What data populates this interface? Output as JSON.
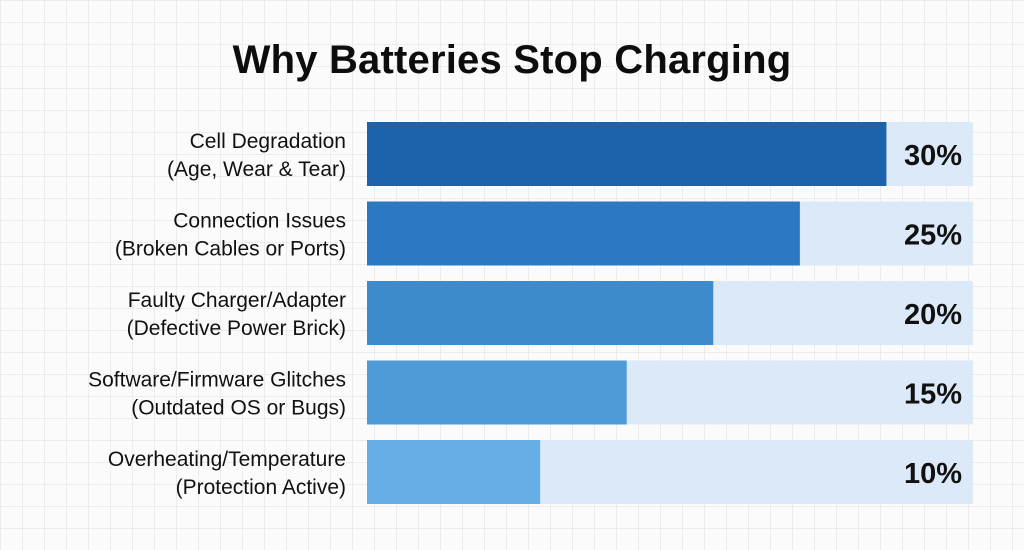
{
  "chart_data": {
    "type": "bar",
    "orientation": "horizontal",
    "title": "Why Batteries Stop Charging",
    "categories": [
      {
        "name": "Cell Degradation",
        "detail": "(Age, Wear & Tear)"
      },
      {
        "name": "Connection Issues",
        "detail": "(Broken Cables or Ports)"
      },
      {
        "name": "Faulty Charger/Adapter",
        "detail": "(Defective Power Brick)"
      },
      {
        "name": "Software/Firmware Glitches",
        "detail": "(Outdated OS or Bugs)"
      },
      {
        "name": "Overheating/Temperature",
        "detail": "(Protection Active)"
      }
    ],
    "values": [
      30,
      25,
      20,
      15,
      10
    ],
    "value_labels": [
      "30%",
      "25%",
      "20%",
      "15%",
      "10%"
    ],
    "xlim": [
      0,
      35
    ],
    "bar_colors": [
      "#1d63ab",
      "#2c79c1",
      "#3d8bca",
      "#4f9bd8",
      "#67aee6"
    ],
    "track_color": "#dce9f8",
    "grid": false,
    "legend": "none"
  }
}
